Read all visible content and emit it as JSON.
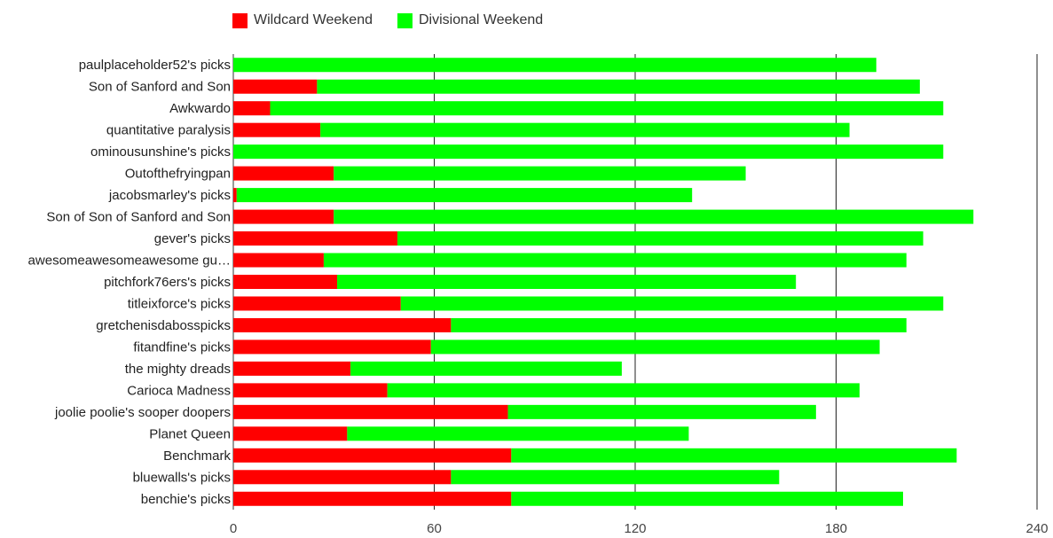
{
  "chart_data": {
    "type": "bar",
    "orientation": "horizontal",
    "stacked": true,
    "categories": [
      "paulplaceholder52's picks",
      "Son of Sanford and Son",
      "Awkwardo",
      "quantitative paralysis",
      "ominousunshine's picks",
      "Outofthefryingpan",
      "jacobsmarley's picks",
      "Son of Son of Sanford and Son",
      "gever's picks",
      "awesomeawesomeawesome gu…",
      "pitchfork76ers's picks",
      "titleixforce's picks",
      "gretchenisdabosspicks",
      "fitandfine's picks",
      "the mighty dreads",
      "Carioca Madness",
      "joolie poolie's sooper doopers",
      "Planet Queen",
      "Benchmark",
      "bluewalls's picks",
      "benchie's picks"
    ],
    "series": [
      {
        "name": "Wildcard Weekend",
        "color": "#ff0000",
        "values": [
          0,
          25,
          11,
          26,
          0,
          30,
          1,
          30,
          49,
          27,
          31,
          50,
          65,
          59,
          35,
          46,
          82,
          34,
          83,
          65,
          83
        ]
      },
      {
        "name": "Divisional Weekend",
        "color": "#00ff00",
        "values": [
          192,
          180,
          201,
          158,
          212,
          123,
          136,
          191,
          157,
          174,
          137,
          162,
          136,
          134,
          81,
          141,
          92,
          102,
          133,
          98,
          117
        ]
      }
    ],
    "xlim": [
      0,
      240
    ],
    "xticks": [
      "0",
      "60",
      "120",
      "180",
      "240"
    ],
    "grid": true,
    "legend": "top-left",
    "title": "",
    "xlabel": "",
    "ylabel": ""
  }
}
